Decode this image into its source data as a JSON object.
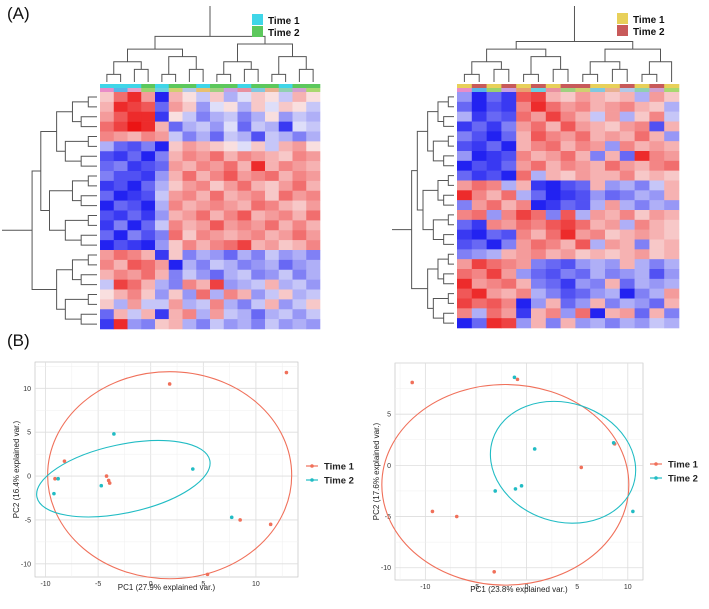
{
  "panels": {
    "a_label": "(A)",
    "b_label": "(B)"
  },
  "chart_data": [
    {
      "type": "heatmap",
      "id": "heatmap-left",
      "legend": [
        {
          "label": "Time 1",
          "color": "#3fd6e8"
        },
        {
          "label": "Time 2",
          "color": "#5cc85c"
        }
      ],
      "col_groups": [
        "#3fd6e8",
        "#3fd6e8",
        "#3fd6e8",
        "#5cc85c",
        "#3fd6e8",
        "#5cc85c",
        "#5cc85c",
        "#3fd6e8",
        "#5cc85c",
        "#5cc85c",
        "#3fd6e8",
        "#5cc85c",
        "#5cc85c",
        "#3fd6e8",
        "#5cc85c",
        "#5cc85c"
      ],
      "col_annotation_colors": [
        "#e88cc8",
        "#5ab4e8",
        "#e8a0c8",
        "#9bd26e",
        "#6ad0e0",
        "#d0d070",
        "#b4c8e8",
        "#e8c070",
        "#a0d080",
        "#c8a0e0",
        "#e890a0",
        "#80c8e0",
        "#e8b090",
        "#90d0b0",
        "#d0a0d0",
        "#a8d870"
      ],
      "rows": 24,
      "cols": 16,
      "values": [
        [
          0.2,
          0.6,
          0.9,
          0.4,
          -0.9,
          0.3,
          0.1,
          -0.2,
          0.2,
          -0.3,
          -0.1,
          0.2,
          0.1,
          -0.2,
          0.3,
          0.1
        ],
        [
          0.3,
          0.9,
          0.8,
          0.7,
          -0.6,
          0.4,
          0.2,
          -0.4,
          -0.1,
          0.1,
          -0.3,
          0.2,
          -0.1,
          0.2,
          0.1,
          -0.2
        ],
        [
          0.4,
          0.7,
          0.9,
          0.9,
          -0.8,
          0.1,
          -0.2,
          -0.5,
          -0.3,
          -0.2,
          -0.5,
          -0.3,
          0.1,
          -0.4,
          -0.2,
          -0.3
        ],
        [
          0.6,
          0.8,
          1.0,
          0.9,
          0.3,
          -0.6,
          -0.3,
          -0.2,
          -0.4,
          -0.1,
          -0.6,
          -0.2,
          -0.3,
          -0.8,
          -0.1,
          -0.2
        ],
        [
          0.5,
          0.4,
          0.3,
          0.5,
          0.4,
          -0.2,
          -0.5,
          -0.3,
          -0.6,
          -0.2,
          -0.3,
          -0.7,
          -0.2,
          -0.3,
          -0.5,
          -0.3
        ],
        [
          -0.3,
          -0.6,
          -0.7,
          -0.5,
          -0.9,
          0.2,
          0.4,
          0.3,
          0.2,
          0.1,
          -0.1,
          0.2,
          -0.2,
          0.3,
          0.4,
          0.1
        ],
        [
          -0.7,
          -0.8,
          -0.6,
          -0.9,
          -0.5,
          0.3,
          0.5,
          0.4,
          0.6,
          0.3,
          0.5,
          0.4,
          0.3,
          0.2,
          0.5,
          0.4
        ],
        [
          -0.6,
          -0.5,
          -0.8,
          -0.7,
          -0.6,
          0.4,
          0.3,
          0.5,
          0.4,
          0.6,
          0.3,
          0.9,
          0.3,
          0.5,
          0.4,
          0.3
        ],
        [
          -0.5,
          -0.7,
          -0.7,
          -0.8,
          -0.4,
          0.3,
          0.6,
          0.3,
          0.5,
          0.7,
          0.4,
          0.5,
          0.6,
          0.3,
          0.5,
          0.4
        ],
        [
          -0.8,
          -0.7,
          -0.9,
          -0.6,
          -0.3,
          0.2,
          0.4,
          0.5,
          0.2,
          0.4,
          0.6,
          0.3,
          0.2,
          0.4,
          0.6,
          0.3
        ],
        [
          -0.6,
          -0.9,
          -0.8,
          -0.7,
          -0.2,
          0.4,
          0.5,
          0.3,
          0.6,
          0.3,
          0.4,
          0.5,
          0.2,
          0.6,
          0.4,
          0.5
        ],
        [
          -0.9,
          -0.6,
          -0.7,
          -0.9,
          -0.3,
          0.5,
          0.3,
          0.4,
          0.5,
          0.4,
          0.3,
          0.6,
          0.5,
          0.3,
          0.2,
          0.4
        ],
        [
          -0.7,
          -0.8,
          -0.6,
          -0.8,
          -0.4,
          0.3,
          0.4,
          0.6,
          0.3,
          0.5,
          0.7,
          0.3,
          0.4,
          0.5,
          0.3,
          0.6
        ],
        [
          -0.8,
          -0.5,
          -0.9,
          -0.6,
          -0.2,
          0.5,
          0.3,
          0.4,
          0.7,
          0.4,
          0.5,
          0.4,
          0.6,
          0.3,
          0.5,
          0.3
        ],
        [
          -0.6,
          -0.9,
          -0.5,
          -0.7,
          -0.5,
          0.6,
          0.2,
          0.5,
          0.4,
          0.3,
          0.4,
          0.5,
          0.3,
          0.4,
          0.6,
          0.4
        ],
        [
          -0.9,
          -0.7,
          -0.8,
          -0.9,
          -0.4,
          0.2,
          0.5,
          0.3,
          0.5,
          0.6,
          0.8,
          0.3,
          0.4,
          0.2,
          0.3,
          0.5
        ],
        [
          0.4,
          0.6,
          0.5,
          0.3,
          -0.8,
          0.2,
          -0.5,
          -0.3,
          -0.4,
          -0.6,
          -0.3,
          -0.5,
          -0.2,
          -0.4,
          -0.3,
          -0.5
        ],
        [
          0.5,
          0.3,
          0.7,
          0.6,
          0.4,
          -0.9,
          -0.3,
          -0.5,
          -0.2,
          -0.3,
          -0.5,
          -0.4,
          -0.3,
          -0.6,
          -0.4,
          -0.3
        ],
        [
          0.3,
          0.5,
          0.4,
          0.6,
          0.3,
          -0.5,
          -0.2,
          -0.4,
          -0.6,
          -0.3,
          -0.2,
          -0.5,
          -0.4,
          -0.2,
          -0.5,
          -0.3
        ],
        [
          -0.2,
          0.8,
          0.6,
          0.3,
          -0.3,
          -0.5,
          0.5,
          0.3,
          0.8,
          -0.4,
          -0.3,
          -0.2,
          0.3,
          -0.3,
          -0.2,
          -0.4
        ],
        [
          0.1,
          0.3,
          0.5,
          0.2,
          -0.4,
          0.2,
          -0.4,
          0.6,
          -0.3,
          0.5,
          0.3,
          -0.4,
          -0.2,
          0.2,
          -0.3,
          -0.2
        ],
        [
          0.2,
          -0.3,
          0.4,
          -0.2,
          -0.2,
          0.4,
          -0.3,
          -0.2,
          0.5,
          -0.3,
          -0.5,
          -0.2,
          0.3,
          -0.4,
          -0.2,
          0.2
        ],
        [
          -0.6,
          0.3,
          -0.2,
          0.3,
          -0.8,
          0.3,
          0.5,
          -0.3,
          0.4,
          -0.2,
          -0.3,
          -0.6,
          -0.3,
          -0.2,
          -0.4,
          -0.2
        ],
        [
          -0.8,
          0.9,
          -0.4,
          -0.5,
          0.2,
          0.3,
          -0.3,
          -0.5,
          -0.2,
          -0.4,
          -0.3,
          -0.5,
          -0.2,
          -0.4,
          -0.3,
          -0.4
        ]
      ]
    },
    {
      "type": "heatmap",
      "id": "heatmap-right",
      "legend": [
        {
          "label": "Time 1",
          "color": "#e8d05a"
        },
        {
          "label": "Time 2",
          "color": "#c85a5a"
        }
      ],
      "col_groups": [
        "#e8d05a",
        "#c85a5a",
        "#e8d05a",
        "#c85a5a",
        "#e8d05a",
        "#c85a5a",
        "#e8d05a",
        "#c85a5a",
        "#c85a5a",
        "#e8d05a",
        "#e8d05a",
        "#c85a5a",
        "#e8d05a",
        "#c85a5a",
        "#e8d05a"
      ],
      "col_annotation_colors": [
        "#e88cc8",
        "#5ab4e8",
        "#9bd26e",
        "#c8a0e0",
        "#e8a070",
        "#6ad0e0",
        "#e890a0",
        "#a0d080",
        "#d0d070",
        "#80c8e0",
        "#e8b090",
        "#b4c8e8",
        "#90d0b0",
        "#d0a0d0",
        "#a8d870"
      ],
      "rows": 24,
      "cols": 15,
      "values": [
        [
          -0.4,
          -0.9,
          -0.6,
          -0.8,
          0.7,
          0.8,
          0.3,
          0.2,
          0.4,
          0.3,
          0.2,
          0.3,
          -0.3,
          0.4,
          0.2
        ],
        [
          -0.6,
          -0.9,
          -0.7,
          -0.8,
          0.5,
          0.9,
          0.6,
          0.4,
          0.5,
          0.3,
          0.4,
          0.5,
          0.3,
          0.2,
          -0.3
        ],
        [
          -0.3,
          -0.8,
          -0.6,
          -0.7,
          0.6,
          0.4,
          0.8,
          0.5,
          0.3,
          -0.2,
          0.4,
          -0.3,
          0.2,
          0.5,
          -0.2
        ],
        [
          -0.8,
          -0.6,
          -0.8,
          -0.5,
          0.4,
          0.6,
          0.3,
          0.7,
          0.4,
          0.3,
          0.2,
          0.4,
          0.5,
          -0.7,
          0.3
        ],
        [
          -0.5,
          -0.7,
          -0.9,
          -0.6,
          0.3,
          0.7,
          0.5,
          0.4,
          0.6,
          0.3,
          0.4,
          0.3,
          0.6,
          0.3,
          -0.4
        ],
        [
          -0.7,
          -0.8,
          -0.6,
          -0.9,
          0.3,
          0.5,
          0.6,
          0.3,
          0.5,
          0.4,
          -0.4,
          0.5,
          0.3,
          0.4,
          0.3
        ],
        [
          -0.4,
          -0.9,
          -0.8,
          -0.7,
          0.5,
          0.3,
          0.4,
          0.6,
          0.3,
          -0.5,
          0.3,
          -0.6,
          0.9,
          0.5,
          0.4
        ],
        [
          -0.9,
          -0.7,
          -0.8,
          -0.6,
          0.4,
          0.6,
          0.3,
          0.5,
          0.4,
          0.3,
          0.6,
          0.4,
          0.3,
          0.5,
          0.6
        ],
        [
          -0.6,
          -0.8,
          -0.7,
          -0.9,
          0.6,
          -0.3,
          0.3,
          0.2,
          0.4,
          0.3,
          0.3,
          0.5,
          0.2,
          0.3,
          0.2
        ],
        [
          0.4,
          0.6,
          0.5,
          -0.3,
          0.3,
          -0.8,
          -0.9,
          -0.7,
          -0.6,
          0.3,
          -0.4,
          -0.3,
          -0.5,
          -0.2,
          0.3
        ],
        [
          0.9,
          0.5,
          0.3,
          0.6,
          -0.3,
          -0.6,
          -0.9,
          -0.8,
          -0.7,
          -0.4,
          -0.6,
          -0.5,
          -0.3,
          -0.4,
          0.3
        ],
        [
          -0.5,
          0.4,
          0.6,
          0.3,
          0.5,
          -0.9,
          -0.8,
          -0.6,
          -0.7,
          -0.3,
          0.4,
          -0.3,
          -0.5,
          -0.3,
          -0.4
        ],
        [
          0.5,
          0.6,
          -0.4,
          0.5,
          0.8,
          0.6,
          -0.5,
          0.7,
          -0.3,
          0.4,
          0.3,
          0.5,
          0.2,
          0.4,
          0.3
        ],
        [
          -0.6,
          -0.8,
          0.5,
          0.4,
          0.6,
          0.5,
          0.7,
          0.8,
          0.6,
          0.3,
          0.4,
          -0.3,
          0.5,
          0.3,
          0.2
        ],
        [
          -0.8,
          -0.9,
          -0.6,
          -0.7,
          0.5,
          0.3,
          0.6,
          0.9,
          0.4,
          0.5,
          0.2,
          0.3,
          0.4,
          0.3,
          0.2
        ],
        [
          -0.7,
          -0.6,
          -0.9,
          -0.5,
          0.4,
          0.6,
          0.5,
          0.3,
          0.7,
          -0.3,
          0.4,
          0.3,
          -0.5,
          0.2,
          0.3
        ],
        [
          -0.5,
          -0.4,
          -0.3,
          0.3,
          0.4,
          0.5,
          0.3,
          0.4,
          0.2,
          0.3,
          0.2,
          0.3,
          0.4,
          0.2,
          0.3
        ],
        [
          0.4,
          0.8,
          0.6,
          0.5,
          0.4,
          -0.5,
          -0.6,
          -0.7,
          -0.4,
          -0.3,
          -0.4,
          0.3,
          -0.3,
          -0.5,
          -0.3
        ],
        [
          0.6,
          0.5,
          0.8,
          0.4,
          -0.4,
          -0.6,
          -0.7,
          -0.5,
          -0.6,
          -0.3,
          -0.5,
          -0.4,
          -0.3,
          -0.7,
          -0.4
        ],
        [
          0.9,
          0.4,
          0.5,
          0.6,
          0.3,
          -0.5,
          -0.6,
          -0.8,
          -0.4,
          -0.5,
          0.3,
          -0.6,
          -0.3,
          -0.4,
          -0.3
        ],
        [
          0.7,
          0.9,
          0.4,
          0.3,
          0.5,
          -0.3,
          -0.5,
          -0.7,
          -0.6,
          -0.4,
          -0.3,
          -0.9,
          -0.5,
          -0.3,
          0.4
        ],
        [
          0.8,
          0.6,
          0.7,
          0.5,
          -0.9,
          -0.4,
          0.3,
          -0.6,
          -0.4,
          0.3,
          -0.5,
          -0.3,
          -0.4,
          -0.6,
          0.3
        ],
        [
          0.5,
          -0.3,
          0.6,
          0.4,
          -0.8,
          0.3,
          0.5,
          -0.4,
          0.6,
          -0.9,
          0.3,
          0.4,
          -0.6,
          0.3,
          -0.5
        ],
        [
          -0.9,
          -0.6,
          0.9,
          0.8,
          -0.4,
          0.3,
          -0.5,
          0.3,
          -0.4,
          -0.3,
          -0.5,
          -0.3,
          -0.4,
          -0.2,
          -0.3
        ]
      ]
    },
    {
      "type": "scatter",
      "id": "pca-left",
      "xlabel": "PC1 (27.9% explained var.)",
      "ylabel": "PC2 (16.4% explained var.)",
      "xlim": [
        -11,
        14
      ],
      "ylim": [
        -11.5,
        13
      ],
      "xticks": [
        -10,
        -5,
        0,
        5,
        10
      ],
      "yticks": [
        -10,
        -5,
        0,
        5,
        10
      ],
      "tick_labels_x": [
        "-10",
        "-5",
        "0",
        "5",
        "10"
      ],
      "tick_labels_y": [
        "-10",
        "-5",
        "0",
        "5",
        "10"
      ],
      "legend": [
        {
          "label": "Time 1",
          "color": "#f0705a"
        },
        {
          "label": "Time 2",
          "color": "#21bcc4"
        }
      ],
      "series": [
        {
          "name": "Time 1",
          "color": "#f0705a",
          "points": [
            [
              1.8,
              10.5
            ],
            [
              12.9,
              11.8
            ],
            [
              -8.2,
              1.7
            ],
            [
              -9.1,
              -0.3
            ],
            [
              -4.2,
              0
            ],
            [
              -4,
              -0.5
            ],
            [
              -3.9,
              -0.8
            ],
            [
              8.5,
              -5
            ],
            [
              11.4,
              -5.5
            ],
            [
              5.4,
              -11.2
            ]
          ]
        },
        {
          "name": "Time 2",
          "color": "#21bcc4",
          "points": [
            [
              -3.5,
              4.8
            ],
            [
              -9.2,
              -2
            ],
            [
              -4.7,
              -1.1
            ],
            [
              4,
              0.8
            ],
            [
              -8.8,
              -0.3
            ],
            [
              7.7,
              -4.7
            ]
          ]
        }
      ],
      "ellipses": [
        {
          "series": "Time 1",
          "color": "#f0705a",
          "cx": 1.8,
          "cy": 0.1,
          "rx": 11.6,
          "ry": 11.8,
          "angle": 0
        },
        {
          "series": "Time 2",
          "color": "#21bcc4",
          "cx": -2.6,
          "cy": -0.3,
          "rx": 8.4,
          "ry": 3.9,
          "angle": -12
        }
      ]
    },
    {
      "type": "scatter",
      "id": "pca-right",
      "xlabel": "PC1 (23.8% explained var.)",
      "ylabel": "PC2 (17.6% explained var.)",
      "xlim": [
        -13,
        11.5
      ],
      "ylim": [
        -11.2,
        10
      ],
      "xticks": [
        -10,
        -5,
        0,
        5,
        10
      ],
      "yticks": [
        -10,
        -5,
        0,
        5
      ],
      "tick_labels_x": [
        "-10",
        "-5",
        "0",
        "5",
        "10"
      ],
      "tick_labels_y": [
        "-10",
        "-5",
        "0",
        "5"
      ],
      "legend": [
        {
          "label": "Time 1",
          "color": "#f0705a"
        },
        {
          "label": "Time 2",
          "color": "#21bcc4"
        }
      ],
      "series": [
        {
          "name": "Time 1",
          "color": "#f0705a",
          "points": [
            [
              -11.3,
              8.1
            ],
            [
              -0.9,
              8.4
            ],
            [
              -9.3,
              -4.5
            ],
            [
              -6.9,
              -5
            ],
            [
              -3.2,
              -10.4
            ],
            [
              5.4,
              -0.2
            ],
            [
              8.7,
              2.1
            ]
          ]
        },
        {
          "name": "Time 2",
          "color": "#21bcc4",
          "points": [
            [
              -1.2,
              8.6
            ],
            [
              0.8,
              1.6
            ],
            [
              -0.5,
              -2
            ],
            [
              -1.1,
              -2.3
            ],
            [
              -3.1,
              -2.5
            ],
            [
              8.6,
              2.2
            ],
            [
              10.5,
              -4.5
            ]
          ]
        }
      ],
      "ellipses": [
        {
          "series": "Time 1",
          "color": "#f0705a",
          "cx": -2.1,
          "cy": -1.9,
          "rx": 12.2,
          "ry": 9.8,
          "angle": 0
        },
        {
          "series": "Time 2",
          "color": "#21bcc4",
          "cx": 3.6,
          "cy": 0.3,
          "rx": 7.3,
          "ry": 5.8,
          "angle": 18
        }
      ]
    }
  ]
}
